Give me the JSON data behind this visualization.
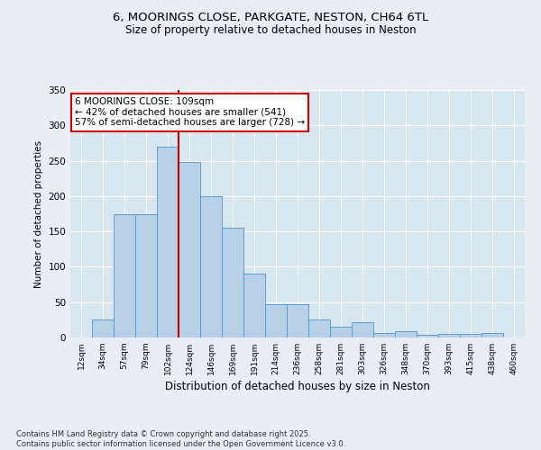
{
  "title1": "6, MOORINGS CLOSE, PARKGATE, NESTON, CH64 6TL",
  "title2": "Size of property relative to detached houses in Neston",
  "xlabel": "Distribution of detached houses by size in Neston",
  "ylabel": "Number of detached properties",
  "categories": [
    "12sqm",
    "34sqm",
    "57sqm",
    "79sqm",
    "102sqm",
    "124sqm",
    "146sqm",
    "169sqm",
    "191sqm",
    "214sqm",
    "236sqm",
    "258sqm",
    "281sqm",
    "303sqm",
    "326sqm",
    "348sqm",
    "370sqm",
    "393sqm",
    "415sqm",
    "438sqm",
    "460sqm"
  ],
  "values": [
    0,
    25,
    175,
    175,
    270,
    248,
    200,
    155,
    90,
    47,
    47,
    25,
    15,
    22,
    7,
    9,
    4,
    5,
    5,
    6,
    0
  ],
  "bar_color": "#b8d0e8",
  "bar_edge_color": "#5a9fd4",
  "vline_color": "#cc0000",
  "annotation_text": "6 MOORINGS CLOSE: 109sqm\n← 42% of detached houses are smaller (541)\n57% of semi-detached houses are larger (728) →",
  "annotation_box_color": "#ffffff",
  "annotation_box_edge": "#cc0000",
  "bg_color": "#e8eef4",
  "plot_bg_color": "#d8e6f0",
  "footer": "Contains HM Land Registry data © Crown copyright and database right 2025.\nContains public sector information licensed under the Open Government Licence v3.0.",
  "ylim": [
    0,
    350
  ],
  "yticks": [
    0,
    50,
    100,
    150,
    200,
    250,
    300,
    350
  ],
  "grid_color": "#ffffff",
  "vline_x_index": 4.5
}
